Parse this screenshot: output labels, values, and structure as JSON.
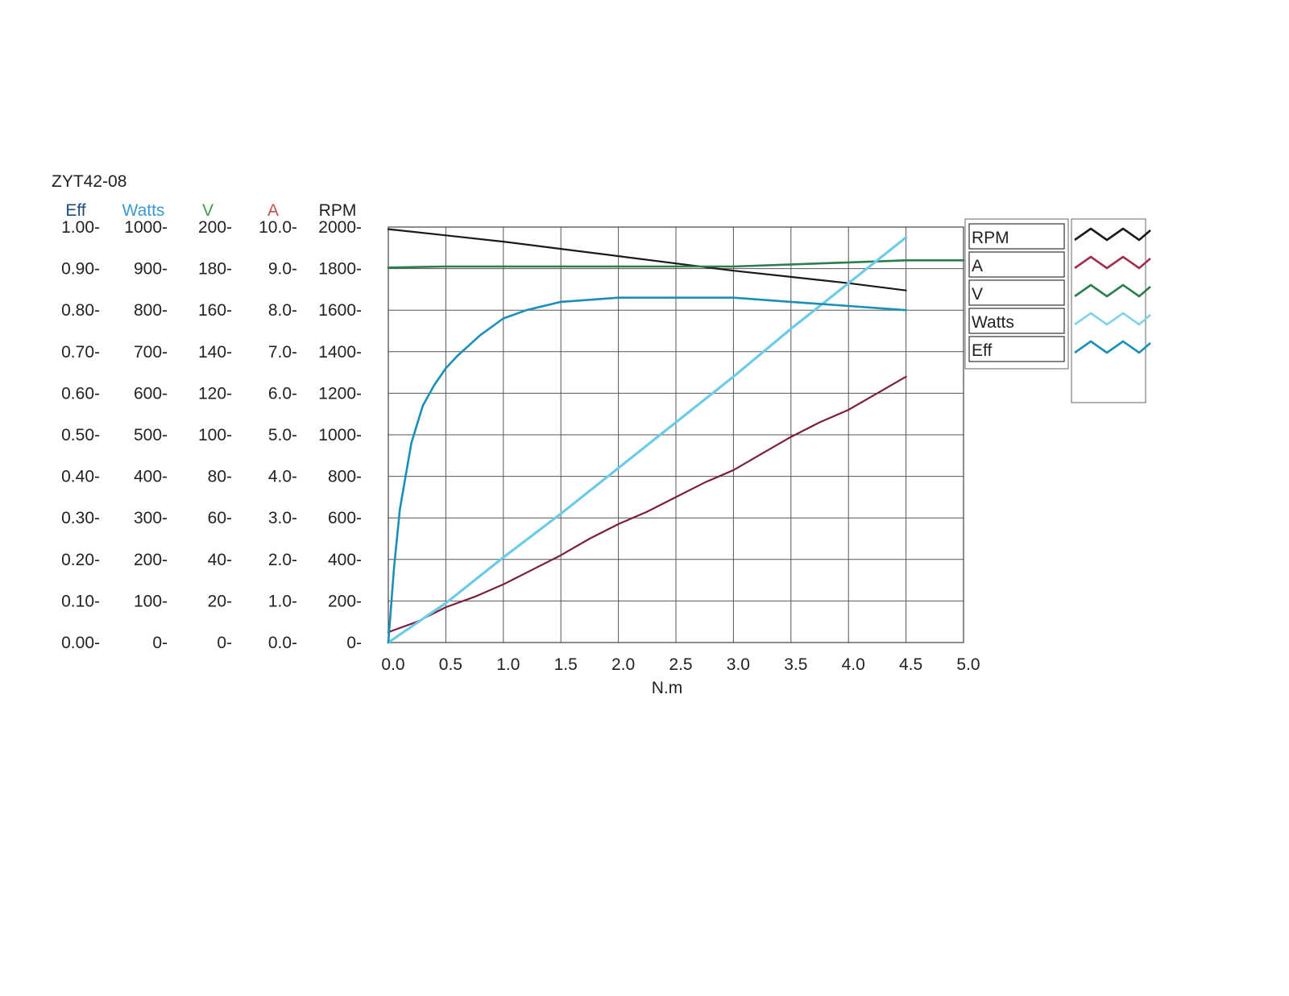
{
  "chart_data": {
    "type": "line",
    "title": "ZYT42-08",
    "xlabel": "N.m",
    "xlim": [
      0,
      5
    ],
    "x_ticks": [
      "0.0",
      "0.5",
      "1.0",
      "1.5",
      "2.0",
      "2.5",
      "3.0",
      "3.5",
      "4.0",
      "4.5",
      "5.0"
    ],
    "grid": true,
    "legend_position": "right",
    "y_axes": [
      {
        "key": "eff",
        "label": "Eff",
        "color": "#1f4e79",
        "range": [
          0,
          1
        ],
        "ticks": [
          "0.00",
          "0.10",
          "0.20",
          "0.30",
          "0.40",
          "0.50",
          "0.60",
          "0.70",
          "0.80",
          "0.90",
          "1.00"
        ]
      },
      {
        "key": "watts",
        "label": "Watts",
        "color": "#3a9bd0",
        "range": [
          0,
          1000
        ],
        "ticks": [
          "0",
          "100",
          "200",
          "300",
          "400",
          "500",
          "600",
          "700",
          "800",
          "900",
          "1000"
        ]
      },
      {
        "key": "v",
        "label": "V",
        "color": "#3b9a4a",
        "range": [
          0,
          200
        ],
        "ticks": [
          "0",
          "20",
          "40",
          "60",
          "80",
          "100",
          "120",
          "140",
          "160",
          "180",
          "200"
        ]
      },
      {
        "key": "a",
        "label": "A",
        "color": "#c0504d",
        "range": [
          0,
          10
        ],
        "ticks": [
          "0.0",
          "1.0",
          "2.0",
          "3.0",
          "4.0",
          "5.0",
          "6.0",
          "7.0",
          "8.0",
          "9.0",
          "10.0"
        ]
      },
      {
        "key": "rpm",
        "label": "RPM",
        "color": "#222222",
        "range": [
          0,
          2000
        ],
        "ticks": [
          "0",
          "200",
          "400",
          "600",
          "800",
          "1000",
          "1200",
          "1400",
          "1600",
          "1800",
          "2000"
        ]
      }
    ],
    "legend": [
      "RPM",
      "A",
      "V",
      "Watts",
      "Eff"
    ],
    "series": [
      {
        "name": "RPM",
        "axis": "rpm",
        "color": "#1a1a1a",
        "width": 2.2,
        "x": [
          0,
          0.5,
          1.0,
          1.5,
          2.0,
          2.5,
          3.0,
          3.5,
          4.0,
          4.5
        ],
        "y": [
          1990,
          1960,
          1930,
          1895,
          1860,
          1825,
          1790,
          1760,
          1730,
          1695
        ]
      },
      {
        "name": "A",
        "axis": "a",
        "color": "#7a1f3d",
        "width": 2.2,
        "x": [
          0,
          0.25,
          0.5,
          0.75,
          1.0,
          1.25,
          1.5,
          1.75,
          2.0,
          2.25,
          2.5,
          2.75,
          3.0,
          3.25,
          3.5,
          3.75,
          4.0,
          4.25,
          4.5
        ],
        "y": [
          0.25,
          0.5,
          0.85,
          1.1,
          1.4,
          1.75,
          2.1,
          2.5,
          2.85,
          3.15,
          3.5,
          3.85,
          4.15,
          4.55,
          4.95,
          5.3,
          5.6,
          6.0,
          6.4
        ]
      },
      {
        "name": "V",
        "axis": "v",
        "color": "#2e7d4f",
        "width": 2.6,
        "x": [
          0,
          0.5,
          1.0,
          1.5,
          2.0,
          2.5,
          3.0,
          3.5,
          4.0,
          4.5,
          5.0
        ],
        "y": [
          180.5,
          181,
          181,
          181,
          181,
          181,
          181,
          182,
          183,
          184,
          184
        ]
      },
      {
        "name": "Watts",
        "axis": "watts",
        "color": "#6ccbe6",
        "width": 3.2,
        "x": [
          0,
          0.5,
          1.0,
          1.5,
          2.0,
          2.5,
          3.0,
          3.5,
          4.0,
          4.5
        ],
        "y": [
          0,
          95,
          205,
          310,
          420,
          530,
          640,
          755,
          865,
          975
        ]
      },
      {
        "name": "Eff",
        "axis": "eff",
        "color": "#1b8fb8",
        "width": 2.6,
        "x": [
          0,
          0.05,
          0.1,
          0.2,
          0.3,
          0.4,
          0.5,
          0.6,
          0.8,
          1.0,
          1.2,
          1.5,
          2.0,
          2.5,
          3.0,
          3.5,
          4.0,
          4.5
        ],
        "y": [
          0,
          0.18,
          0.32,
          0.48,
          0.57,
          0.62,
          0.66,
          0.69,
          0.74,
          0.78,
          0.8,
          0.82,
          0.83,
          0.83,
          0.83,
          0.82,
          0.81,
          0.8
        ]
      }
    ]
  }
}
